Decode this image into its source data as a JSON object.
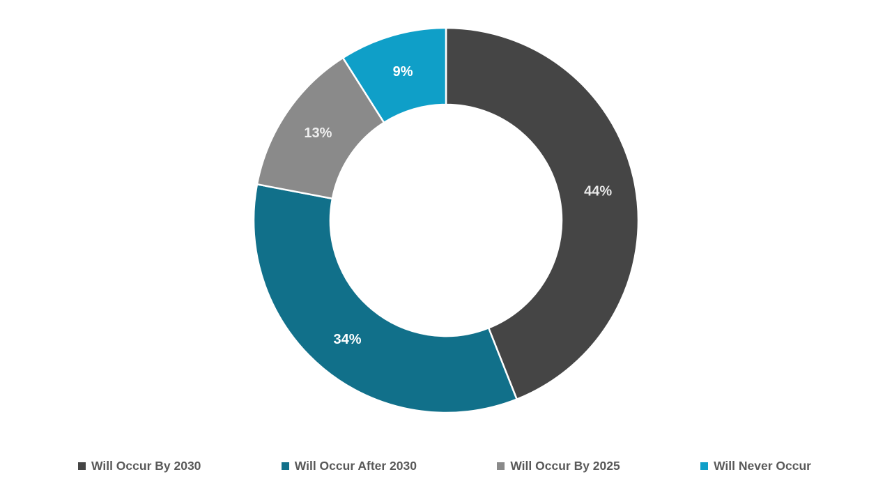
{
  "chart_data": {
    "type": "pie",
    "subtype": "donut",
    "start_angle_deg": 0,
    "direction": "clockwise",
    "legend_position": "bottom",
    "legend_text_color": "#595959",
    "divider_color": "#ffffff",
    "background_color": "#ffffff",
    "slices": [
      {
        "label": "Will Occur By 2030",
        "value": 44,
        "value_label": "44%",
        "color": "#454545",
        "label_color": "#e8e8e8"
      },
      {
        "label": "Will Occur After 2030",
        "value": 34,
        "value_label": "34%",
        "color": "#11708a",
        "label_color": "#ffffff"
      },
      {
        "label": "Will Occur By 2025",
        "value": 13,
        "value_label": "13%",
        "color": "#8a8a8a",
        "label_color": "#efefef"
      },
      {
        "label": "Will Never Occur",
        "value": 9,
        "value_label": "9%",
        "color": "#0f9fc8",
        "label_color": "#ffffff"
      }
    ]
  }
}
